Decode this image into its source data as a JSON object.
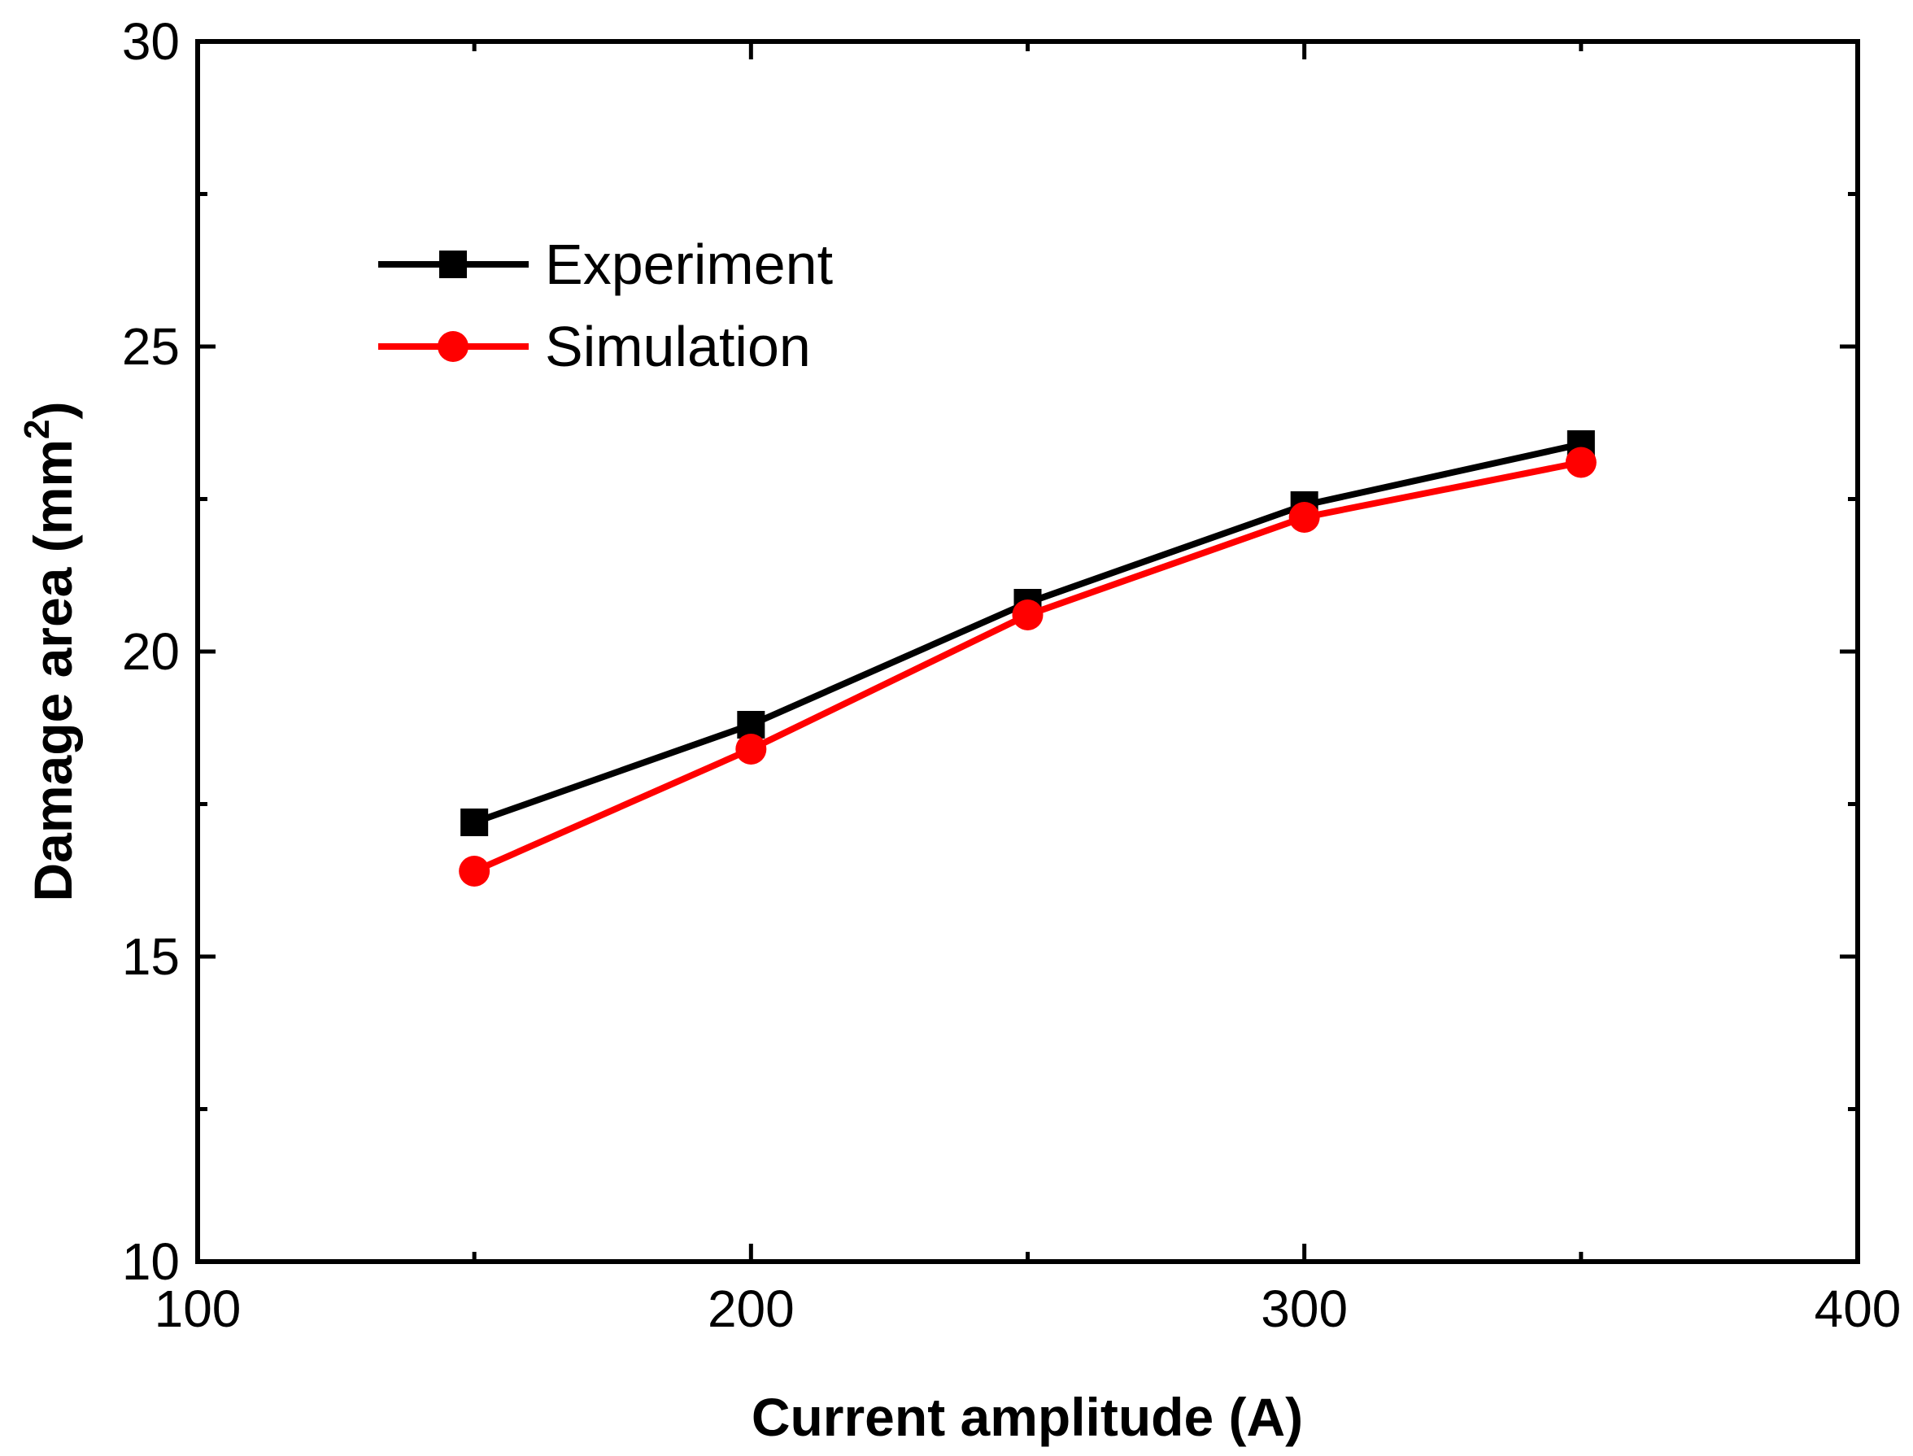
{
  "chart_data": {
    "type": "line",
    "title": "",
    "xlabel": "Current amplitude (A)",
    "ylabel_main": "Damage area (mm",
    "ylabel_sup": "2",
    "ylabel_close": ")",
    "xlim": [
      100,
      400
    ],
    "ylim": [
      10,
      30
    ],
    "xticks": [
      100,
      200,
      300,
      400
    ],
    "yticks": [
      10,
      15,
      20,
      25,
      30
    ],
    "x_minor_ticks": [
      150,
      250,
      350
    ],
    "y_minor_ticks": [
      12.5,
      17.5,
      22.5,
      27.5
    ],
    "legend_position": "top-left",
    "series": [
      {
        "name": "Experiment",
        "color": "#000000",
        "marker": "square",
        "x": [
          150,
          200,
          250,
          300,
          350
        ],
        "y": [
          17.2,
          18.8,
          20.8,
          22.4,
          23.4
        ]
      },
      {
        "name": "Simulation",
        "color": "#ff0000",
        "marker": "circle",
        "x": [
          150,
          200,
          250,
          300,
          350
        ],
        "y": [
          16.4,
          18.4,
          20.6,
          22.2,
          23.1
        ]
      }
    ]
  }
}
